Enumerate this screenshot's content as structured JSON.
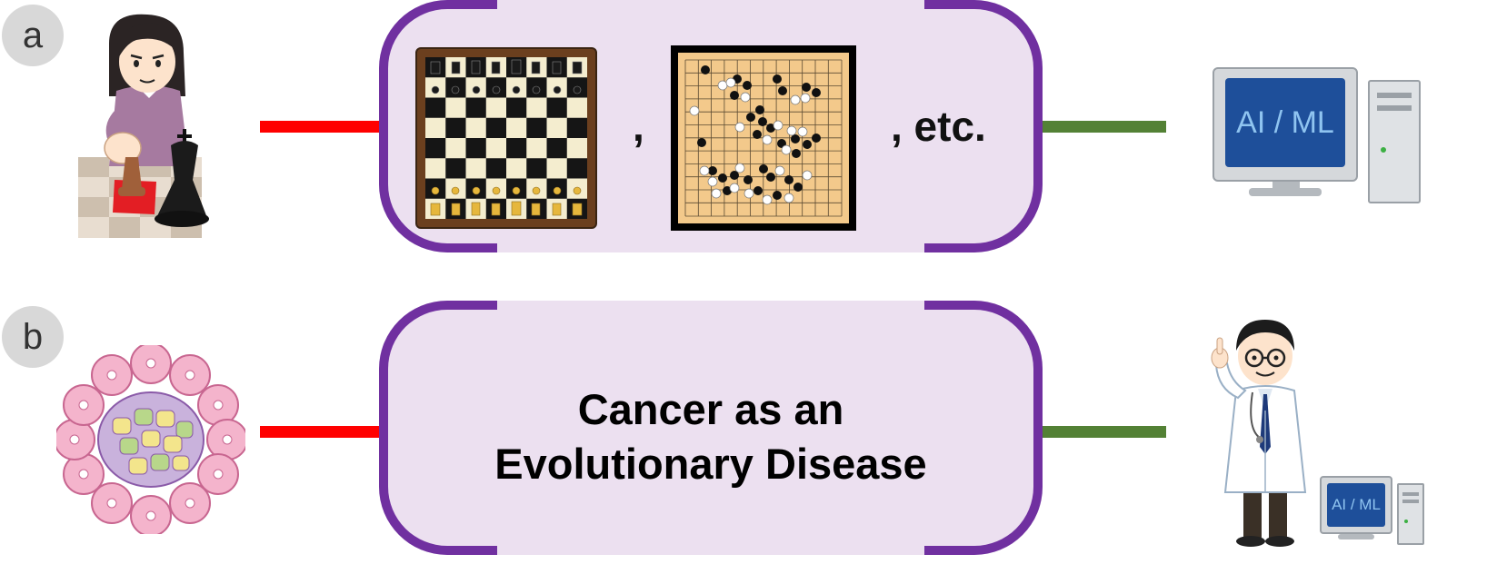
{
  "panels": {
    "a": {
      "label": "a",
      "separator": ",",
      "etc": ", etc.",
      "computer_label": "AI / ML"
    },
    "b": {
      "label": "b",
      "title_line1": "Cancer as an",
      "title_line2": "Evolutionary Disease",
      "computer_label": "AI / ML"
    }
  },
  "colors": {
    "box_fill": "#ece0f0",
    "box_bracket": "#7030a0",
    "connector_left": "#ff0000",
    "connector_right": "#538135"
  }
}
